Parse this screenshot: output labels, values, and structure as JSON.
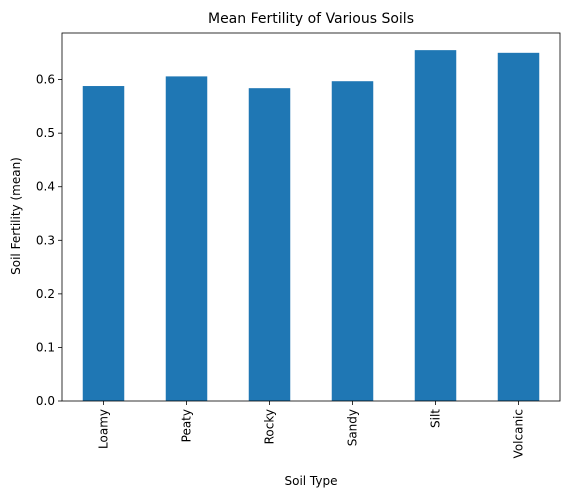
{
  "chart_data": {
    "type": "bar",
    "title": "Mean Fertility of Various Soils",
    "xlabel": "Soil Type",
    "ylabel": "Soil Fertility (mean)",
    "categories": [
      "Loamy",
      "Peaty",
      "Rocky",
      "Sandy",
      "Silt",
      "Volcanic"
    ],
    "values": [
      0.588,
      0.606,
      0.584,
      0.597,
      0.655,
      0.65
    ],
    "ylim": [
      0,
      0.687
    ],
    "yticks": [
      "0.0",
      "0.1",
      "0.2",
      "0.3",
      "0.4",
      "0.5",
      "0.6"
    ],
    "bar_color": "#1f77b4",
    "grid": false,
    "legend": "none"
  }
}
